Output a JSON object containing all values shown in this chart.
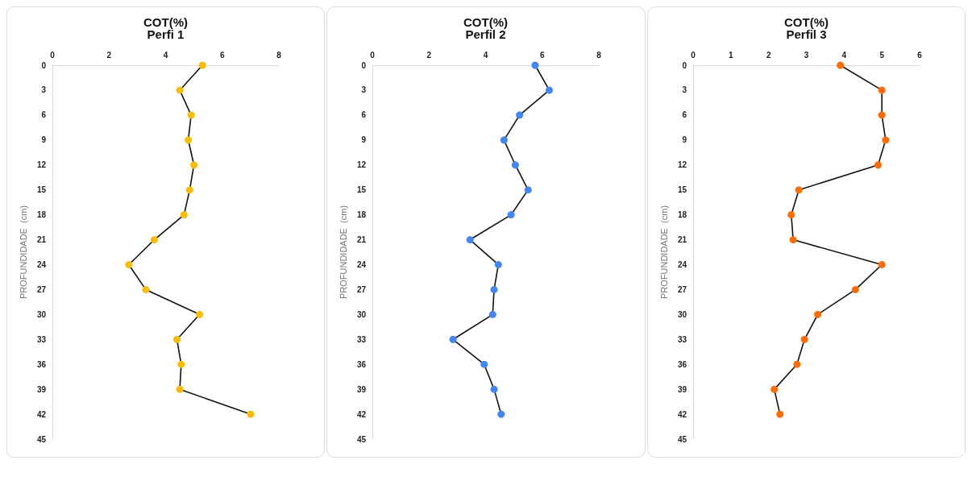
{
  "chart_data": [
    {
      "type": "line",
      "title": "COT(%)",
      "subtitle": "Perfi 1",
      "ylabel": "PROFUNDIDADE  (cm)",
      "orientation": "horizontal",
      "categories": [
        "0",
        "3",
        "6",
        "9",
        "12",
        "15",
        "18",
        "21",
        "24",
        "27",
        "30",
        "33",
        "36",
        "39",
        "42",
        "45"
      ],
      "series": [
        {
          "color": "#fbbc04",
          "values": [
            5.3,
            4.5,
            4.9,
            4.8,
            5.0,
            4.85,
            4.65,
            3.6,
            2.7,
            3.3,
            5.2,
            4.4,
            4.55,
            4.5,
            7.0,
            null
          ]
        }
      ],
      "xlim": [
        0,
        8
      ],
      "xticks": [
        0,
        2,
        4,
        6,
        8
      ],
      "grid": false,
      "marker": "circle",
      "line_style": "solid"
    },
    {
      "type": "line",
      "title": "COT(%)",
      "subtitle": "Perfil 2",
      "ylabel": "PROFUNDIDADE  (cm)",
      "orientation": "horizontal",
      "categories": [
        "0",
        "3",
        "6",
        "9",
        "12",
        "15",
        "18",
        "21",
        "24",
        "27",
        "30",
        "33",
        "36",
        "39",
        "42",
        "45"
      ],
      "series": [
        {
          "color": "#4285f4",
          "values": [
            5.75,
            6.25,
            5.2,
            4.65,
            5.05,
            5.5,
            4.9,
            3.45,
            4.45,
            4.3,
            4.25,
            2.85,
            3.95,
            4.3,
            4.55,
            null
          ]
        }
      ],
      "xlim": [
        0,
        8
      ],
      "xticks": [
        0,
        2,
        4,
        6,
        8
      ],
      "grid": false,
      "marker": "circle",
      "line_style": "solid"
    },
    {
      "type": "line",
      "title": "COT(%)",
      "subtitle": "Perfil 3",
      "ylabel": "PROFUNDIDADE  (cm)",
      "orientation": "horizontal",
      "categories": [
        "0",
        "3",
        "6",
        "9",
        "12",
        "15",
        "18",
        "21",
        "24",
        "27",
        "30",
        "33",
        "36",
        "39",
        "42",
        "45"
      ],
      "series": [
        {
          "color": "#ff6d01",
          "values": [
            3.9,
            5.0,
            5.0,
            5.1,
            4.9,
            2.8,
            2.6,
            2.65,
            5.0,
            4.3,
            3.3,
            2.95,
            2.75,
            2.15,
            2.3,
            null
          ]
        }
      ],
      "xlim": [
        0,
        6
      ],
      "xticks": [
        0,
        1,
        2,
        3,
        4,
        5,
        6
      ],
      "grid": false,
      "marker": "circle",
      "line_style": "solid"
    }
  ]
}
